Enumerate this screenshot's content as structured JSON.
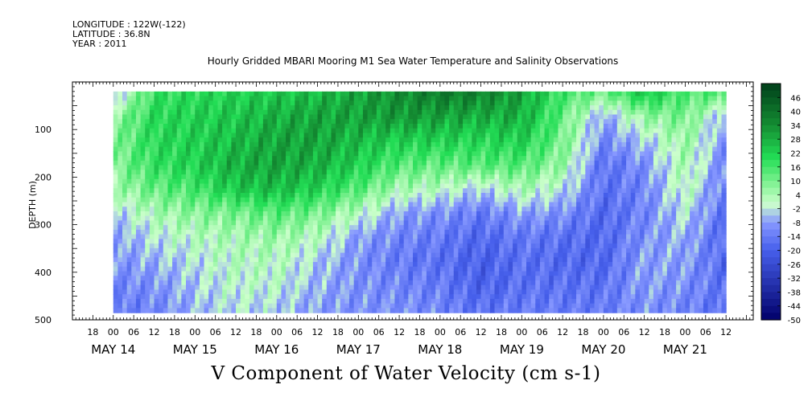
{
  "header": {
    "longitude": "LONGITUDE : 122W(-122)",
    "latitude": "LATITUDE : 36.8N",
    "year": "YEAR : 2011"
  },
  "title": "Hourly Gridded MBARI Mooring M1 Sea Water Temperature and Salinity Observations",
  "xlabel": "V Component of Water Velocity (cm s-1)",
  "colors": {
    "positive_dark": "#003f1a",
    "positive": "#22dd55",
    "neutral": "#ccffcc",
    "negative": "#8899ff",
    "negative_dark": "#00006a"
  },
  "chart_data": {
    "type": "heatmap",
    "title": "Hourly Gridded MBARI Mooring M1 Sea Water Temperature and Salinity Observations",
    "xlabel": "V Component of Water Velocity (cm s-1)",
    "ylabel": "DEPTH (m)",
    "x_range_hours_since_may14_00": [
      -12,
      188
    ],
    "x_data_range_hours": [
      0,
      180
    ],
    "x_hour_ticks": [
      "18",
      "00",
      "06",
      "12",
      "18",
      "00",
      "06",
      "12",
      "18",
      "00",
      "06",
      "12",
      "18",
      "00",
      "06",
      "12",
      "18",
      "00",
      "06",
      "12",
      "18",
      "00",
      "06",
      "12",
      "18",
      "00",
      "06",
      "12",
      "18",
      "00",
      "06",
      "12"
    ],
    "x_day_labels": [
      "MAY 14",
      "MAY 15",
      "MAY 16",
      "MAY 17",
      "MAY 18",
      "MAY 19",
      "MAY 20",
      "MAY 21"
    ],
    "ylim": [
      500,
      0
    ],
    "y_data_range": [
      20,
      485
    ],
    "y_ticks": [
      "100",
      "200",
      "300",
      "400",
      "500"
    ],
    "colorbar_levels": [
      "46",
      "40",
      "34",
      "28",
      "22",
      "16",
      "10",
      "4",
      "-2",
      "-8",
      "-14",
      "-20",
      "-26",
      "-32",
      "-38",
      "-44",
      "-50"
    ],
    "colorbar_range": [
      -50,
      52
    ],
    "depths": [
      25,
      75,
      125,
      175,
      225,
      275,
      325,
      375,
      425,
      475
    ],
    "times_hours": [
      0,
      12,
      24,
      36,
      48,
      60,
      72,
      84,
      96,
      108,
      120,
      132,
      144,
      156,
      168,
      180
    ],
    "values": [
      [
        -6,
        18,
        20,
        22,
        24,
        26,
        30,
        34,
        38,
        36,
        30,
        16,
        10,
        24,
        14,
        14
      ],
      [
        6,
        20,
        22,
        24,
        28,
        30,
        30,
        32,
        30,
        28,
        28,
        12,
        -8,
        6,
        10,
        -8
      ],
      [
        8,
        20,
        22,
        26,
        30,
        30,
        26,
        22,
        22,
        20,
        22,
        10,
        -12,
        -4,
        6,
        -10
      ],
      [
        8,
        18,
        22,
        28,
        30,
        28,
        22,
        14,
        12,
        14,
        14,
        6,
        -16,
        -10,
        4,
        -12
      ],
      [
        4,
        12,
        16,
        24,
        26,
        22,
        14,
        4,
        2,
        -4,
        4,
        -2,
        -16,
        -12,
        2,
        -14
      ],
      [
        -4,
        4,
        8,
        10,
        14,
        10,
        2,
        -8,
        -10,
        -14,
        -8,
        -10,
        -18,
        -12,
        -2,
        -16
      ],
      [
        -8,
        -2,
        2,
        4,
        6,
        2,
        -8,
        -12,
        -14,
        -18,
        -14,
        -16,
        -18,
        -10,
        -6,
        -18
      ],
      [
        -10,
        -6,
        -2,
        2,
        2,
        -4,
        -10,
        -14,
        -16,
        -20,
        -16,
        -18,
        -18,
        -8,
        -8,
        -18
      ],
      [
        -12,
        -10,
        -4,
        0,
        0,
        -6,
        -10,
        -12,
        -14,
        -20,
        -16,
        -16,
        -16,
        -8,
        -10,
        -16
      ],
      [
        -14,
        -12,
        -6,
        -2,
        -4,
        -8,
        -10,
        -10,
        -12,
        -16,
        -14,
        -14,
        -14,
        -10,
        -12,
        -16
      ]
    ]
  }
}
